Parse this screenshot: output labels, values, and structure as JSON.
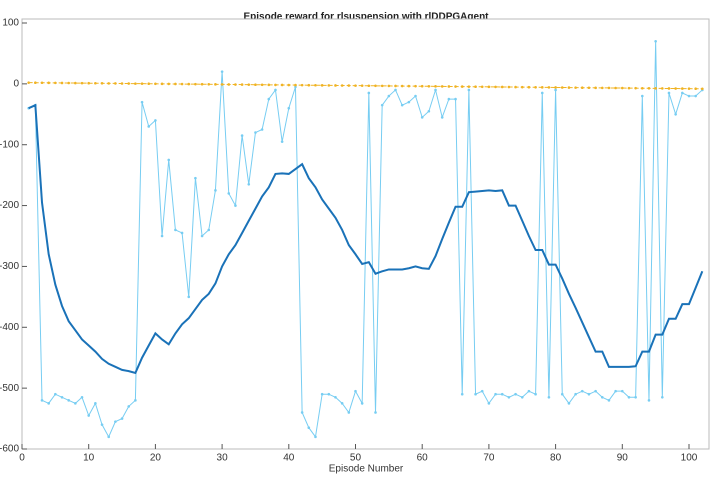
{
  "chart_data": {
    "type": "line",
    "title": "Episode reward for rlsuspension with rlDDPGAgent",
    "x_label": "Episode Number",
    "x": [
      1,
      2,
      3,
      4,
      5,
      6,
      7,
      8,
      9,
      10,
      11,
      12,
      13,
      14,
      15,
      16,
      17,
      18,
      19,
      20,
      21,
      22,
      23,
      24,
      25,
      26,
      27,
      28,
      29,
      30,
      31,
      32,
      33,
      34,
      35,
      36,
      37,
      38,
      39,
      40,
      41,
      42,
      43,
      44,
      45,
      46,
      47,
      48,
      49,
      50,
      51,
      52,
      53,
      54,
      55,
      56,
      57,
      58,
      59,
      60,
      61,
      62,
      63,
      64,
      65,
      66,
      67,
      68,
      69,
      70,
      71,
      72,
      73,
      74,
      75,
      76,
      77,
      78,
      79,
      80,
      81,
      82,
      83,
      84,
      85,
      86,
      87,
      88,
      89,
      90,
      91,
      92,
      93,
      94,
      95,
      96,
      97,
      98,
      99,
      100,
      101,
      102
    ],
    "series": [
      {
        "color": "#77cdf2",
        "width": 1,
        "marker": true,
        "dashed": false,
        "values": [
          -40,
          -35,
          -520,
          -525,
          -510,
          -515,
          -520,
          -525,
          -515,
          -545,
          -525,
          -560,
          -580,
          -555,
          -550,
          -530,
          -520,
          -30,
          -70,
          -60,
          -250,
          -125,
          -240,
          -245,
          -350,
          -155,
          -250,
          -240,
          -175,
          20,
          -180,
          -200,
          -85,
          -165,
          -80,
          -75,
          -25,
          -10,
          -95,
          -40,
          -5,
          -540,
          -565,
          -580,
          -510,
          -510,
          -515,
          -525,
          -540,
          -505,
          -525,
          -15,
          -540,
          -35,
          -20,
          -10,
          -35,
          -30,
          -20,
          -55,
          -45,
          -10,
          -55,
          -25,
          -25,
          -510,
          -10,
          -510,
          -505,
          -525,
          -510,
          -510,
          -515,
          -510,
          -515,
          -505,
          -510,
          -15,
          -515,
          -10,
          -510,
          -525,
          -510,
          -505,
          -510,
          -505,
          -515,
          -520,
          -505,
          -505,
          -515,
          -515,
          -20,
          -520,
          70,
          -515,
          -15,
          -50,
          -15,
          -20,
          -20,
          -10
        ]
      },
      {
        "color": "#1a72b8",
        "width": 2,
        "marker": false,
        "dashed": false,
        "values": [
          -40,
          -35,
          -195,
          -280,
          -330,
          -365,
          -390,
          -405,
          -420,
          -430,
          -440,
          -452,
          -460,
          -465,
          -470,
          -472,
          -475,
          -450,
          -430,
          -410,
          -420,
          -428,
          -410,
          -395,
          -385,
          -370,
          -355,
          -345,
          -328,
          -300,
          -280,
          -265,
          -245,
          -225,
          -205,
          -185,
          -170,
          -148,
          -147,
          -148,
          -140,
          -132,
          -155,
          -170,
          -190,
          -205,
          -220,
          -240,
          -265,
          -280,
          -296,
          -293,
          -312,
          -308,
          -305,
          -305,
          -305,
          -303,
          -300,
          -303,
          -304,
          -283,
          -255,
          -228,
          -202,
          -202,
          -178,
          -177,
          -176,
          -175,
          -176,
          -175,
          -200,
          -200,
          -225,
          -250,
          -273,
          -273,
          -297,
          -297,
          -320,
          -345,
          -368,
          -392,
          -416,
          -440,
          -440,
          -465,
          -465,
          -465,
          -465,
          -464,
          -440,
          -440,
          -412,
          -412,
          -386,
          -386,
          -362,
          -362,
          -335,
          -308
        ]
      },
      {
        "color": "#f0b323",
        "width": 1,
        "marker": true,
        "dashed": true,
        "values": [
          2,
          1.9,
          1.8,
          1.7,
          1.6,
          1.5,
          1.4,
          1.3,
          1.2,
          1.1,
          1,
          0.9,
          0.8,
          0.7,
          0.6,
          0.5,
          0.4,
          0.3,
          0.2,
          0.1,
          0,
          -0.1,
          -0.2,
          -0.3,
          -0.4,
          -0.5,
          -0.6,
          -0.7,
          -0.8,
          -0.9,
          -1,
          -1.1,
          -1.2,
          -1.3,
          -1.4,
          -1.5,
          -1.6,
          -1.7,
          -1.8,
          -1.9,
          -2,
          -2.1,
          -2.2,
          -2.3,
          -2.4,
          -2.5,
          -2.6,
          -2.7,
          -2.8,
          -2.9,
          -3,
          -3.1,
          -3.2,
          -3.3,
          -3.4,
          -3.5,
          -3.6,
          -3.7,
          -3.8,
          -3.9,
          -4,
          -4.1,
          -4.2,
          -4.3,
          -4.4,
          -4.5,
          -4.6,
          -4.7,
          -4.8,
          -4.9,
          -5,
          -5.1,
          -5.2,
          -5.3,
          -5.4,
          -5.5,
          -5.6,
          -5.7,
          -5.8,
          -5.9,
          -6,
          -6.1,
          -6.2,
          -6.3,
          -6.4,
          -6.5,
          -6.6,
          -6.7,
          -6.8,
          -6.9,
          -7,
          -7.1,
          -7.2,
          -7.3,
          -7.4,
          -7.5,
          -7.6,
          -7.7,
          -7.8,
          -7.9,
          -8,
          -8.1
        ]
      }
    ],
    "xlim": [
      0,
      103
    ],
    "xticks": [
      0,
      10,
      20,
      30,
      40,
      50,
      60,
      70,
      80,
      90,
      100
    ],
    "ylim": [
      -600,
      100
    ],
    "yticks": [
      100,
      0,
      -100,
      -200,
      -300,
      -400,
      -500,
      -600
    ],
    "grid": false
  }
}
